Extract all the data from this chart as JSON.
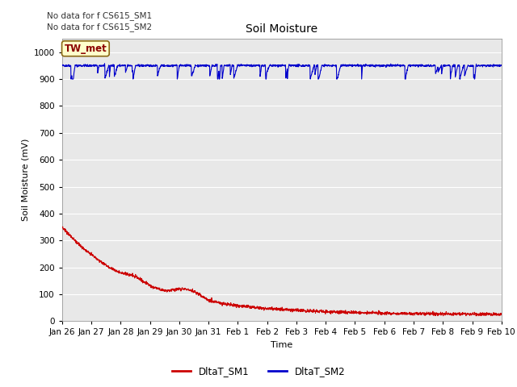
{
  "title": "Soil Moisture",
  "ylabel": "Soil Moisture (mV)",
  "xlabel": "Time",
  "yticks": [
    0,
    100,
    200,
    300,
    400,
    500,
    600,
    700,
    800,
    900,
    1000
  ],
  "ylim": [
    0,
    1050
  ],
  "xtick_labels": [
    "Jan 26",
    "Jan 27",
    "Jan 28",
    "Jan 29",
    "Jan 30",
    "Jan 31",
    "Feb 1",
    "Feb 2",
    "Feb 3",
    "Feb 4",
    "Feb 5",
    "Feb 6",
    "Feb 7",
    "Feb 8",
    "Feb 9",
    "Feb 10"
  ],
  "no_data_text1": "No data for f CS615_SM1",
  "no_data_text2": "No data for f CS615_SM2",
  "legend_station": "TW_met",
  "legend_sm1": "DltaT_SM1",
  "legend_sm2": "DltaT_SM2",
  "sm1_color": "#cc0000",
  "sm2_color": "#0000cc",
  "fig_bg_color": "#ffffff",
  "plot_bg_color": "#e8e8e8",
  "grid_color": "#ffffff",
  "title_fontsize": 10,
  "label_fontsize": 8,
  "tick_fontsize": 7.5,
  "annotation_fontsize": 7.5
}
